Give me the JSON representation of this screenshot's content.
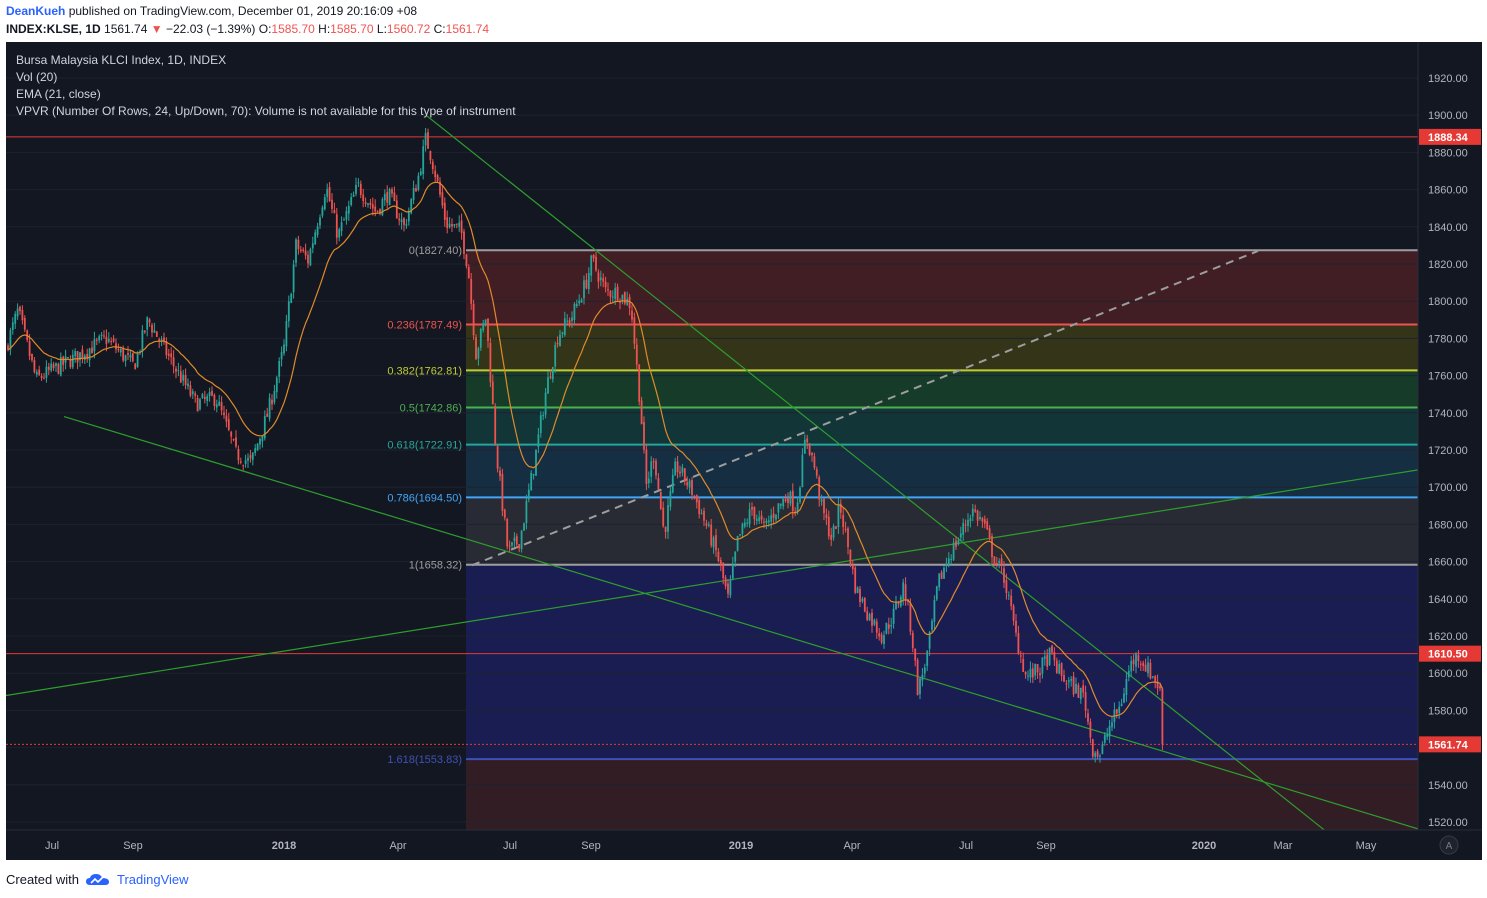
{
  "header": {
    "author": "DeanKueh",
    "published": "published on TradingView.com, December 01, 2019 20:16:09 +08",
    "symbol": "INDEX:KLSE, 1D",
    "last": "1561.74",
    "change_arrow": "▼",
    "change": "−22.03 (−1.39%)",
    "o_label": "O:",
    "o_value": "1585.70",
    "h_label": "H:",
    "h_value": "1585.70",
    "l_label": "L:",
    "l_value": "1560.72",
    "c_label": "C:",
    "c_value": "1561.74"
  },
  "legend": {
    "line1": "Bursa Malaysia KLCI Index, 1D, INDEX",
    "line2": "Vol (20)",
    "line3": "EMA (21, close)",
    "line4": "VPVR (Number Of Rows, 24, Up/Down, 70): Volume is not available for this type of instrument"
  },
  "footer": {
    "created_with": "Created with",
    "brand": "TradingView"
  },
  "colors": {
    "background": "#131722",
    "up": "#26a69a",
    "down": "#ef5350",
    "ema": "#e08a2a",
    "trendline": "#2e9e2e",
    "hline": "#e53935",
    "dashed": "#9e9e9e"
  },
  "chart_data": {
    "type": "candlestick",
    "title": "Bursa Malaysia KLCI Index, 1D, INDEX",
    "y_ticks": [
      "1520.00",
      "1540.00",
      "1560.00",
      "1580.00",
      "1600.00",
      "1620.00",
      "1640.00",
      "1660.00",
      "1680.00",
      "1700.00",
      "1720.00",
      "1740.00",
      "1760.00",
      "1780.00",
      "1800.00",
      "1820.00",
      "1840.00",
      "1860.00",
      "1880.00",
      "1900.00",
      "1920.00"
    ],
    "x_ticks": [
      {
        "label": "Jul",
        "bold": false
      },
      {
        "label": "Sep",
        "bold": false
      },
      {
        "label": "2018",
        "bold": true
      },
      {
        "label": "Apr",
        "bold": false
      },
      {
        "label": "Jul",
        "bold": false
      },
      {
        "label": "Sep",
        "bold": false
      },
      {
        "label": "2019",
        "bold": true
      },
      {
        "label": "Apr",
        "bold": false
      },
      {
        "label": "Jul",
        "bold": false
      },
      {
        "label": "Sep",
        "bold": false
      },
      {
        "label": "2020",
        "bold": true
      },
      {
        "label": "Mar",
        "bold": false
      },
      {
        "label": "May",
        "bold": false
      }
    ],
    "price_keypoints": [
      [
        0,
        1775
      ],
      [
        12,
        1795
      ],
      [
        30,
        1758
      ],
      [
        70,
        1770
      ],
      [
        100,
        1780
      ],
      [
        128,
        1765
      ],
      [
        142,
        1790
      ],
      [
        165,
        1768
      ],
      [
        190,
        1745
      ],
      [
        210,
        1748
      ],
      [
        230,
        1718
      ],
      [
        245,
        1713
      ],
      [
        262,
        1740
      ],
      [
        278,
        1775
      ],
      [
        290,
        1830
      ],
      [
        302,
        1822
      ],
      [
        320,
        1862
      ],
      [
        332,
        1835
      ],
      [
        352,
        1862
      ],
      [
        370,
        1848
      ],
      [
        382,
        1858
      ],
      [
        398,
        1840
      ],
      [
        412,
        1866
      ],
      [
        420,
        1888
      ],
      [
        428,
        1872
      ],
      [
        440,
        1842
      ],
      [
        455,
        1838
      ],
      [
        462,
        1818
      ],
      [
        470,
        1772
      ],
      [
        480,
        1792
      ],
      [
        490,
        1720
      ],
      [
        502,
        1665
      ],
      [
        514,
        1672
      ],
      [
        528,
        1712
      ],
      [
        540,
        1752
      ],
      [
        552,
        1782
      ],
      [
        566,
        1792
      ],
      [
        580,
        1810
      ],
      [
        586,
        1822
      ],
      [
        600,
        1805
      ],
      [
        612,
        1805
      ],
      [
        625,
        1798
      ],
      [
        635,
        1740
      ],
      [
        640,
        1700
      ],
      [
        648,
        1718
      ],
      [
        658,
        1675
      ],
      [
        670,
        1712
      ],
      [
        686,
        1698
      ],
      [
        700,
        1680
      ],
      [
        712,
        1662
      ],
      [
        722,
        1640
      ],
      [
        732,
        1672
      ],
      [
        746,
        1688
      ],
      [
        758,
        1678
      ],
      [
        770,
        1688
      ],
      [
        782,
        1696
      ],
      [
        790,
        1688
      ],
      [
        800,
        1728
      ],
      [
        808,
        1712
      ],
      [
        816,
        1688
      ],
      [
        826,
        1672
      ],
      [
        834,
        1690
      ],
      [
        842,
        1668
      ],
      [
        850,
        1645
      ],
      [
        862,
        1632
      ],
      [
        876,
        1620
      ],
      [
        888,
        1632
      ],
      [
        898,
        1648
      ],
      [
        906,
        1620
      ],
      [
        912,
        1590
      ],
      [
        922,
        1612
      ],
      [
        932,
        1648
      ],
      [
        942,
        1662
      ],
      [
        952,
        1672
      ],
      [
        966,
        1688
      ],
      [
        978,
        1680
      ],
      [
        988,
        1662
      ],
      [
        998,
        1652
      ],
      [
        1010,
        1620
      ],
      [
        1020,
        1598
      ],
      [
        1034,
        1602
      ],
      [
        1044,
        1610
      ],
      [
        1056,
        1598
      ],
      [
        1068,
        1592
      ],
      [
        1078,
        1588
      ],
      [
        1086,
        1560
      ],
      [
        1094,
        1556
      ],
      [
        1104,
        1572
      ],
      [
        1114,
        1582
      ],
      [
        1124,
        1604
      ],
      [
        1132,
        1610
      ],
      [
        1142,
        1602
      ],
      [
        1150,
        1596
      ],
      [
        1157,
        1585
      ],
      [
        1158,
        1561.74
      ]
    ],
    "ema21_last": 1590,
    "fibonacci": [
      {
        "label": "0(1827.40)",
        "value": 1827.4,
        "color": "#9e9e9e"
      },
      {
        "label": "0.236(1787.49)",
        "value": 1787.49,
        "color": "#ef5350"
      },
      {
        "label": "0.382(1762.81)",
        "value": 1762.81,
        "color": "#c0ca33"
      },
      {
        "label": "0.5(1742.86)",
        "value": 1742.86,
        "color": "#4caf50"
      },
      {
        "label": "0.618(1722.91)",
        "value": 1722.91,
        "color": "#26a69a"
      },
      {
        "label": "0.786(1694.50)",
        "value": 1694.5,
        "color": "#42a5f5"
      },
      {
        "label": "1(1658.32)",
        "value": 1658.32,
        "color": "#9e9e9e"
      },
      {
        "label": "1.618(1553.83)",
        "value": 1553.83,
        "color": "#3f51b5"
      }
    ],
    "price_labels": [
      {
        "label": "1888.34",
        "value": 1888.34,
        "color": "#e53935"
      },
      {
        "label": "1610.50",
        "value": 1610.5,
        "color": "#e53935"
      },
      {
        "label": "1561.74",
        "value": 1561.74,
        "color": "#e53935"
      }
    ],
    "trendlines": [
      {
        "p1": [
          420,
          1900
        ],
        "p2": [
          1320,
          1515
        ]
      },
      {
        "p1": [
          58,
          1738
        ],
        "p2": [
          1420,
          1515
        ]
      },
      {
        "p1": [
          0,
          1588
        ],
        "p2": [
          1420,
          1710
        ]
      }
    ],
    "dashed_line": {
      "p1": [
        466,
        1658
      ],
      "p2": [
        1252,
        1827
      ]
    }
  }
}
